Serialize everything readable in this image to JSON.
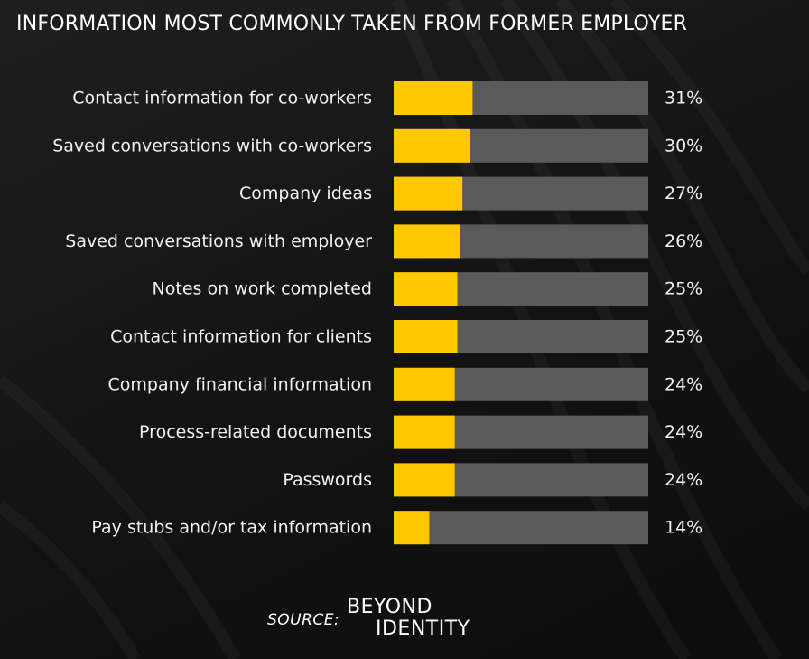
{
  "title": "INFORMATION MOST COMMONLY TAKEN FROM FORMER EMPLOYER",
  "colors": {
    "background": "#161616",
    "bar_fill": "#ffc800",
    "bar_track": "#5a5a5a",
    "text": "#ffffff"
  },
  "chart_data": {
    "type": "bar",
    "orientation": "horizontal",
    "title": "INFORMATION MOST COMMONLY TAKEN FROM FORMER EMPLOYER",
    "categories": [
      "Contact information for co-workers",
      "Saved conversations with co-workers",
      "Company ideas",
      "Saved conversations with employer",
      "Notes on work completed",
      "Contact information for clients",
      "Company financial information",
      "Process-related documents",
      "Passwords",
      "Pay stubs and/or tax information"
    ],
    "values": [
      31,
      30,
      27,
      26,
      25,
      25,
      24,
      24,
      24,
      14
    ],
    "value_labels": [
      "31%",
      "30%",
      "27%",
      "26%",
      "25%",
      "25%",
      "24%",
      "24%",
      "24%",
      "14%"
    ],
    "xlim": [
      0,
      100
    ],
    "grid": false,
    "legend": "none"
  },
  "source": {
    "label": "SOURCE:",
    "brand_line1": "BEYOND",
    "brand_line2": "IDENTITY"
  }
}
